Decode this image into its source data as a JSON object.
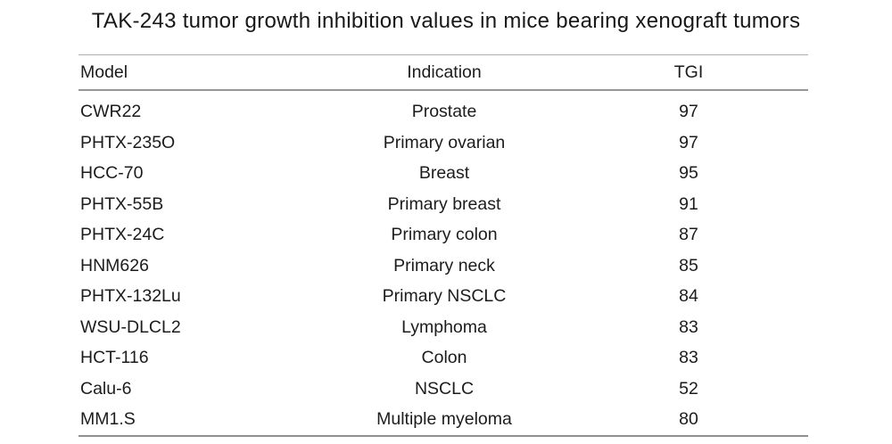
{
  "title": "TAK-243 tumor growth inhibition values in mice bearing xenograft tumors",
  "table": {
    "columns": [
      {
        "label": "Model",
        "align": "left"
      },
      {
        "label": "Indication",
        "align": "center"
      },
      {
        "label": "TGI",
        "align": "center"
      }
    ],
    "rows": [
      {
        "model": "CWR22",
        "indication": "Prostate",
        "tgi": "97"
      },
      {
        "model": "PHTX-235O",
        "indication": "Primary ovarian",
        "tgi": "97"
      },
      {
        "model": "HCC-70",
        "indication": "Breast",
        "tgi": "95"
      },
      {
        "model": "PHTX-55B",
        "indication": "Primary breast",
        "tgi": "91"
      },
      {
        "model": "PHTX-24C",
        "indication": "Primary colon",
        "tgi": "87"
      },
      {
        "model": "HNM626",
        "indication": "Primary neck",
        "tgi": "85"
      },
      {
        "model": "PHTX-132Lu",
        "indication": "Primary NSCLC",
        "tgi": "84"
      },
      {
        "model": "WSU-DLCL2",
        "indication": "Lymphoma",
        "tgi": "83"
      },
      {
        "model": "HCT-116",
        "indication": "Colon",
        "tgi": "83"
      },
      {
        "model": "Calu-6",
        "indication": "NSCLC",
        "tgi": "52"
      },
      {
        "model": "MM1.S",
        "indication": "Multiple myeloma",
        "tgi": "80"
      }
    ]
  },
  "chart_data": {
    "type": "table",
    "title": "TAK-243 tumor growth inhibition values in mice bearing xenograft tumors",
    "columns": [
      "Model",
      "Indication",
      "TGI"
    ],
    "rows": [
      [
        "CWR22",
        "Prostate",
        97
      ],
      [
        "PHTX-235O",
        "Primary ovarian",
        97
      ],
      [
        "HCC-70",
        "Breast",
        95
      ],
      [
        "PHTX-55B",
        "Primary breast",
        91
      ],
      [
        "PHTX-24C",
        "Primary colon",
        87
      ],
      [
        "HNM626",
        "Primary neck",
        85
      ],
      [
        "PHTX-132Lu",
        "Primary NSCLC",
        84
      ],
      [
        "WSU-DLCL2",
        "Lymphoma",
        83
      ],
      [
        "HCT-116",
        "Colon",
        83
      ],
      [
        "Calu-6",
        "NSCLC",
        52
      ],
      [
        "MM1.S",
        "Multiple myeloma",
        80
      ]
    ]
  },
  "colors": {
    "background": "#ffffff",
    "text": "#1c1c1c",
    "rule_top": "#acacac",
    "rule_header": "#979797",
    "rule_bottom": "#8f8f8f"
  }
}
